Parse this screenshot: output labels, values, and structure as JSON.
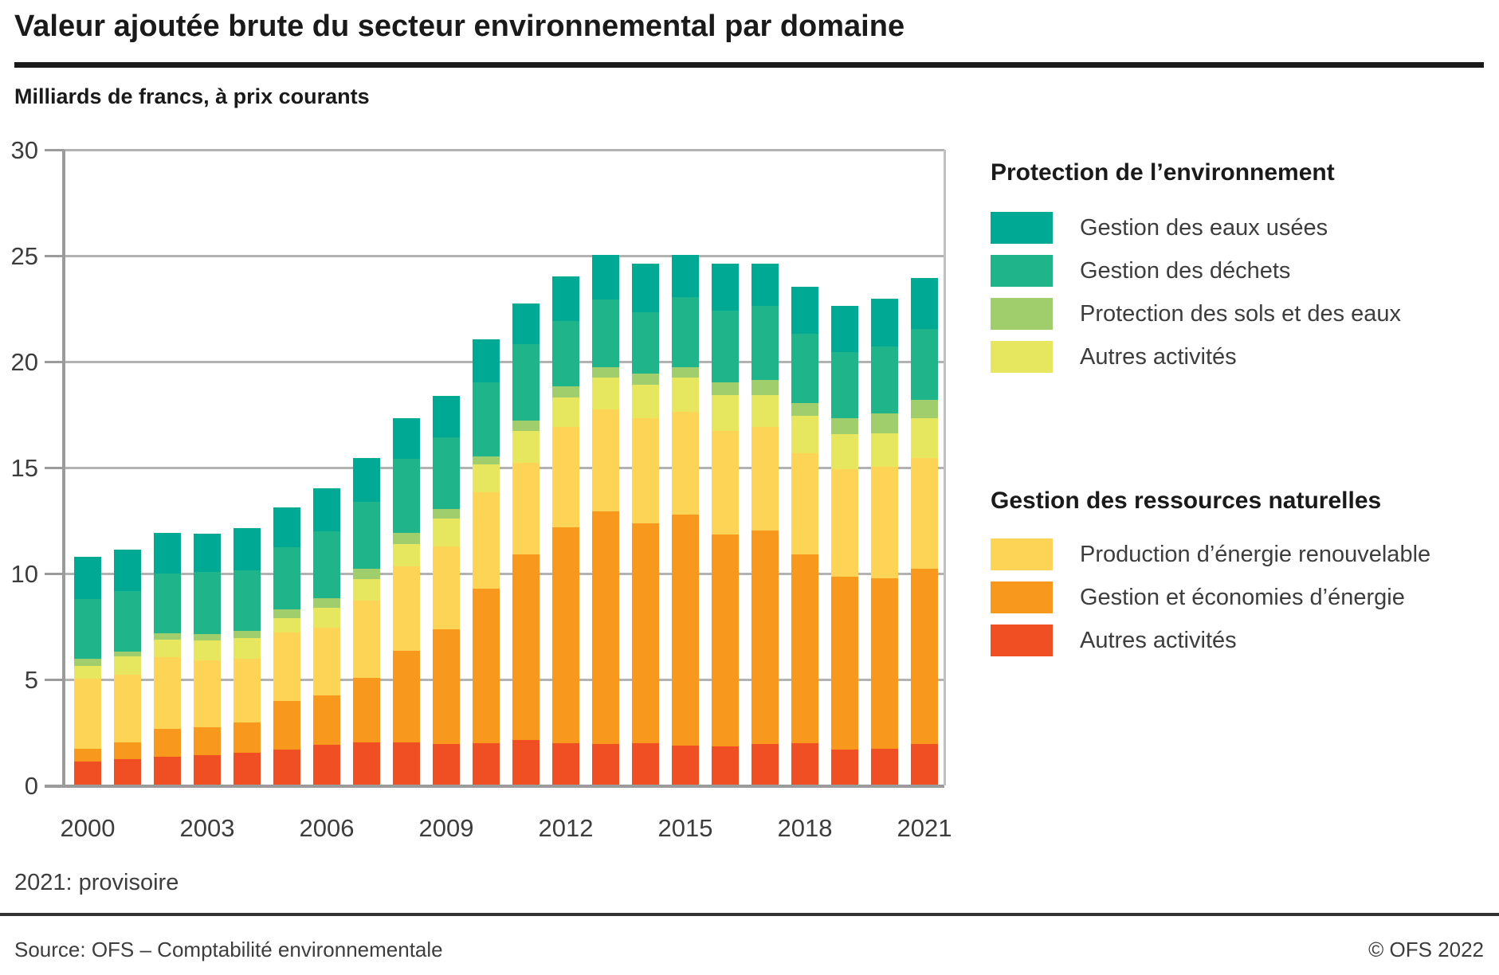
{
  "title": "Valeur ajoutée brute du secteur environnemental par domaine",
  "subtitle": "Milliards de francs, à prix courants",
  "footnote": "2021: provisoire",
  "source": "Source: OFS – Comptabilité environnementale",
  "copyright": "© OFS 2022",
  "colors": {
    "eaux_usees": "#00A994",
    "dechets": "#20B48A",
    "sols_et_eaux": "#A0CE6C",
    "autres_protection": "#E6E65F",
    "energie_renouvelable": "#FDD455",
    "economies_energie": "#F8991D",
    "autres_ressources": "#EF4F23",
    "gridline": "#b2b2b2",
    "axis": "#9b9b9b"
  },
  "legend": {
    "groups": [
      {
        "title": "Protection de l’environnement",
        "items": [
          {
            "label": "Gestion des eaux usées",
            "color": "#00A994"
          },
          {
            "label": "Gestion des déchets",
            "color": "#20B48A"
          },
          {
            "label": "Protection des sols et des eaux",
            "color": "#A0CE6C"
          },
          {
            "label": "Autres activités",
            "color": "#E6E65F"
          }
        ]
      },
      {
        "title": "Gestion des ressources naturelles",
        "items": [
          {
            "label": "Production d’énergie renouvelable",
            "color": "#FDD455"
          },
          {
            "label": "Gestion et économies d’énergie",
            "color": "#F8991D"
          },
          {
            "label": "Autres activités",
            "color": "#EF4F23"
          }
        ]
      }
    ]
  },
  "chart_data": {
    "type": "bar",
    "stacked": true,
    "grid": true,
    "legend_position": "right",
    "title": "Valeur ajoutée brute du secteur environnemental par domaine",
    "ylabel": "Milliards de francs, à prix courants",
    "ylim": [
      0,
      30
    ],
    "y_ticks": [
      0,
      5,
      10,
      15,
      20,
      25,
      30
    ],
    "categories": [
      2000,
      2001,
      2002,
      2003,
      2004,
      2005,
      2006,
      2007,
      2008,
      2009,
      2010,
      2011,
      2012,
      2013,
      2014,
      2015,
      2016,
      2017,
      2018,
      2019,
      2020,
      2021
    ],
    "x_tick_labels": [
      "2000",
      "2003",
      "2006",
      "2009",
      "2012",
      "2015",
      "2018",
      "2021"
    ],
    "series": [
      {
        "name": "Autres activités (gestion des ressources naturelles)",
        "color_key": "autres_ressources",
        "color": "#EF4F23",
        "values": [
          1.1,
          1.2,
          1.3,
          1.4,
          1.5,
          1.65,
          1.9,
          2.0,
          2.0,
          1.9,
          1.95,
          2.1,
          1.95,
          1.9,
          1.95,
          1.85,
          1.8,
          1.9,
          1.95,
          1.65,
          1.7,
          1.9
        ]
      },
      {
        "name": "Gestion et économies d’énergie",
        "color_key": "economies_energie",
        "color": "#F8991D",
        "values": [
          0.6,
          0.8,
          1.35,
          1.3,
          1.45,
          2.3,
          2.3,
          3.05,
          4.3,
          5.45,
          7.3,
          8.75,
          10.2,
          11.0,
          10.4,
          10.9,
          10.0,
          10.1,
          8.9,
          8.15,
          8.05,
          8.3
        ]
      },
      {
        "name": "Production d’énergie renouvelable",
        "color_key": "energie_renouvelable",
        "color": "#FDD455",
        "values": [
          3.3,
          3.2,
          3.35,
          3.15,
          3.0,
          3.25,
          3.2,
          3.65,
          4.0,
          3.9,
          4.55,
          4.35,
          4.75,
          4.8,
          4.95,
          4.85,
          4.9,
          4.9,
          4.8,
          5.1,
          5.25,
          5.2
        ]
      },
      {
        "name": "Autres activités (protection de l’environnement)",
        "color_key": "autres_protection",
        "color": "#E6E65F",
        "values": [
          0.6,
          0.85,
          0.85,
          0.95,
          0.95,
          0.65,
          0.95,
          1.0,
          1.05,
          1.3,
          1.3,
          1.5,
          1.4,
          1.5,
          1.6,
          1.6,
          1.7,
          1.5,
          1.75,
          1.65,
          1.6,
          1.9
        ]
      },
      {
        "name": "Protection des sols et des eaux",
        "color_key": "sols_et_eaux",
        "color": "#A0CE6C",
        "values": [
          0.35,
          0.25,
          0.3,
          0.3,
          0.35,
          0.45,
          0.45,
          0.5,
          0.55,
          0.45,
          0.4,
          0.5,
          0.5,
          0.5,
          0.5,
          0.5,
          0.6,
          0.7,
          0.6,
          0.75,
          0.95,
          0.85
        ]
      },
      {
        "name": "Gestion des déchets",
        "color_key": "dechets",
        "color": "#20B48A",
        "values": [
          2.8,
          2.85,
          2.8,
          2.95,
          2.85,
          2.9,
          3.15,
          3.15,
          3.5,
          3.4,
          3.5,
          3.6,
          3.1,
          3.2,
          2.9,
          3.3,
          3.4,
          3.5,
          3.3,
          3.1,
          3.15,
          3.35
        ]
      },
      {
        "name": "Gestion des eaux usées",
        "color_key": "eaux_usees",
        "color": "#00A994",
        "values": [
          2.0,
          1.95,
          1.95,
          1.8,
          2.0,
          1.9,
          2.05,
          2.05,
          1.9,
          1.95,
          2.0,
          1.9,
          2.1,
          2.1,
          2.3,
          2.0,
          2.2,
          2.0,
          2.2,
          2.2,
          2.25,
          2.4
        ]
      }
    ]
  }
}
